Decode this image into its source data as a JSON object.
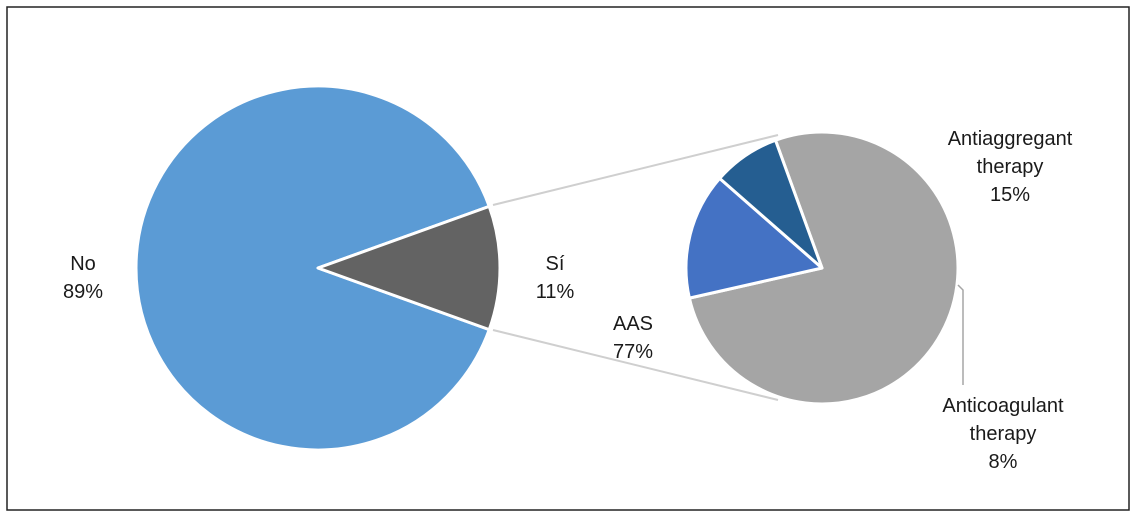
{
  "chart_data": [
    {
      "type": "pie",
      "categories": [
        "No",
        "Sí"
      ],
      "values": [
        89,
        11
      ],
      "labels": [
        {
          "name": "No",
          "value": "89%"
        },
        {
          "name": "Sí",
          "value": "11%"
        }
      ],
      "colors": [
        "#5b9bd5",
        "#636363"
      ]
    },
    {
      "type": "pie",
      "categories": [
        "AAS",
        "Antiaggregant therapy",
        "Anticoagulant therapy"
      ],
      "values": [
        77,
        15,
        8
      ],
      "labels": [
        {
          "line1": "AAS",
          "line2": "",
          "value": "77%"
        },
        {
          "line1": "Antiaggregant",
          "line2": "therapy",
          "value": "15%"
        },
        {
          "line1": "Anticoagulant",
          "line2": "therapy",
          "value": "8%"
        }
      ],
      "colors": [
        "#a5a5a5",
        "#4472c4",
        "#255e91"
      ]
    }
  ]
}
